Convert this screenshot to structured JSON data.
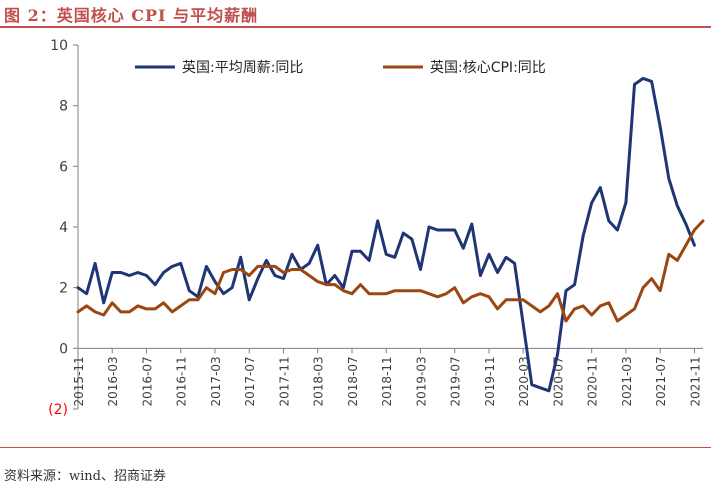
{
  "title": "图 2：英国核心 CPI 与平均薪酬",
  "source": "资料来源：wind、招商证券",
  "chart_data": {
    "type": "line",
    "ylim": [
      -2,
      10
    ],
    "yticks": [
      {
        "value": 10,
        "label": "10"
      },
      {
        "value": 8,
        "label": "8"
      },
      {
        "value": 6,
        "label": "6"
      },
      {
        "value": 4,
        "label": "4"
      },
      {
        "value": 2,
        "label": "2"
      },
      {
        "value": 0,
        "label": "0"
      },
      {
        "value": -2,
        "label": "(2)"
      }
    ],
    "negative_color": "#ff0000",
    "x_start": "2015-11",
    "x_end": "2021-12",
    "xtick_labels": [
      "2015-11",
      "2016-03",
      "2016-07",
      "2016-11",
      "2017-03",
      "2017-07",
      "2017-11",
      "2018-03",
      "2018-07",
      "2018-11",
      "2019-03",
      "2019-07",
      "2019-11",
      "2020-03",
      "2020-07",
      "2020-11",
      "2021-03",
      "2021-07",
      "2021-11"
    ],
    "legend_position": "top",
    "series": [
      {
        "name": "英国:平均周薪:同比",
        "color": "#1f3575",
        "values": [
          2.0,
          1.8,
          2.8,
          1.5,
          2.5,
          2.5,
          2.4,
          2.5,
          2.4,
          2.1,
          2.5,
          2.7,
          2.8,
          1.9,
          1.7,
          2.7,
          2.2,
          1.8,
          2.0,
          3.0,
          1.6,
          2.3,
          2.9,
          2.4,
          2.3,
          3.1,
          2.6,
          2.8,
          3.4,
          2.1,
          2.4,
          2.0,
          3.2,
          3.2,
          2.9,
          4.2,
          3.1,
          3.0,
          3.8,
          3.6,
          2.6,
          4.0,
          3.9,
          3.9,
          3.9,
          3.3,
          4.1,
          2.4,
          3.1,
          2.5,
          3.0,
          2.8,
          0.8,
          -1.2,
          -1.3,
          -1.4,
          -0.2,
          1.9,
          2.1,
          3.7,
          4.8,
          5.3,
          4.2,
          3.9,
          4.8,
          8.7,
          8.9,
          8.8,
          7.3,
          5.6,
          4.7,
          4.1,
          3.4
        ]
      },
      {
        "name": "英国:核心CPI:同比",
        "color": "#9c4612",
        "values": [
          1.2,
          1.4,
          1.2,
          1.1,
          1.5,
          1.2,
          1.2,
          1.4,
          1.3,
          1.3,
          1.5,
          1.2,
          1.4,
          1.6,
          1.6,
          2.0,
          1.8,
          2.5,
          2.6,
          2.6,
          2.4,
          2.7,
          2.7,
          2.7,
          2.5,
          2.6,
          2.6,
          2.4,
          2.2,
          2.1,
          2.1,
          1.9,
          1.8,
          2.1,
          1.8,
          1.8,
          1.8,
          1.9,
          1.9,
          1.9,
          1.9,
          1.8,
          1.7,
          1.8,
          2.0,
          1.5,
          1.7,
          1.8,
          1.7,
          1.3,
          1.6,
          1.6,
          1.6,
          1.4,
          1.2,
          1.4,
          1.8,
          0.9,
          1.3,
          1.4,
          1.1,
          1.4,
          1.5,
          0.9,
          1.1,
          1.3,
          2.0,
          2.3,
          1.9,
          3.1,
          2.9,
          3.4,
          3.9,
          4.2
        ]
      }
    ]
  }
}
